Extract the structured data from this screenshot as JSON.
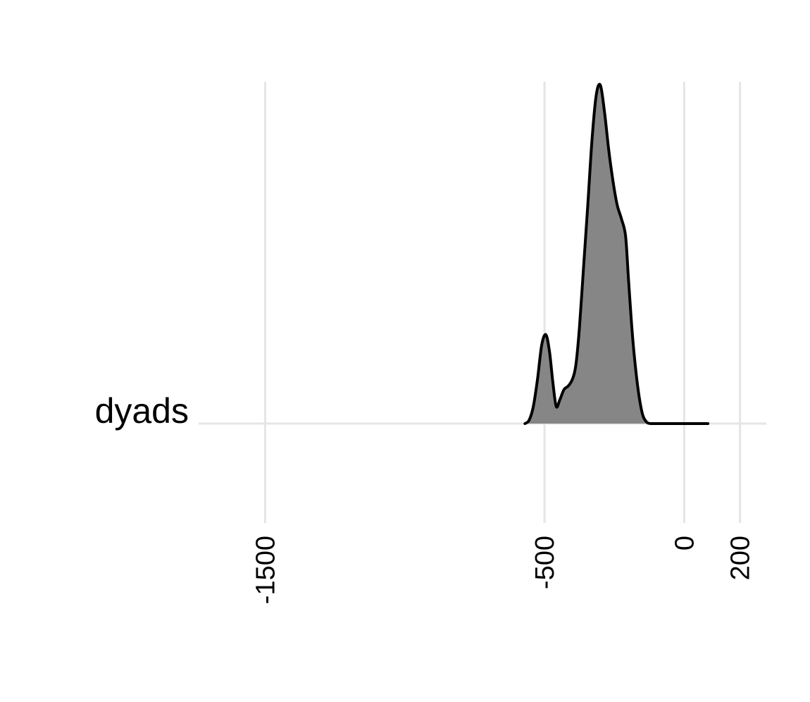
{
  "chart_data": {
    "type": "area",
    "title": "",
    "xlabel": "",
    "ylabel": "",
    "xlim": [
      -1738,
      294
    ],
    "x_ticks": [
      {
        "value": -1500,
        "label": "-1500"
      },
      {
        "value": -500,
        "label": "-500"
      },
      {
        "value": 0,
        "label": "0"
      },
      {
        "value": 200,
        "label": "200"
      }
    ],
    "grid": true,
    "categories": [
      "dyads"
    ],
    "series": [
      {
        "category": "dyads",
        "fill_color": "#868686",
        "line_color": "#000000",
        "x": [
          -570,
          -555,
          -540,
          -525,
          -510,
          -495,
          -482,
          -470,
          -458,
          -445,
          -430,
          -415,
          -400,
          -388,
          -375,
          -360,
          -345,
          -330,
          -315,
          -300,
          -285,
          -270,
          -255,
          -240,
          -225,
          -210,
          -200,
          -190,
          -180,
          -165,
          -150,
          -135,
          -120,
          -105,
          -90,
          -75,
          -60,
          -45,
          -30,
          -15,
          0,
          15,
          30,
          45,
          60,
          70,
          80,
          85
        ],
        "y": [
          0.0,
          0.01,
          0.05,
          0.13,
          0.23,
          0.26,
          0.21,
          0.12,
          0.05,
          0.07,
          0.1,
          0.11,
          0.13,
          0.17,
          0.28,
          0.46,
          0.64,
          0.83,
          0.96,
          0.99,
          0.91,
          0.8,
          0.71,
          0.64,
          0.6,
          0.55,
          0.43,
          0.31,
          0.21,
          0.1,
          0.03,
          0.005,
          0.0,
          0.0,
          0.0,
          0.0,
          0.0,
          0.0,
          0.0,
          0.0,
          0.0,
          0.0,
          0.0,
          0.0,
          0.0,
          0.0,
          0.0,
          0.0
        ]
      }
    ]
  }
}
